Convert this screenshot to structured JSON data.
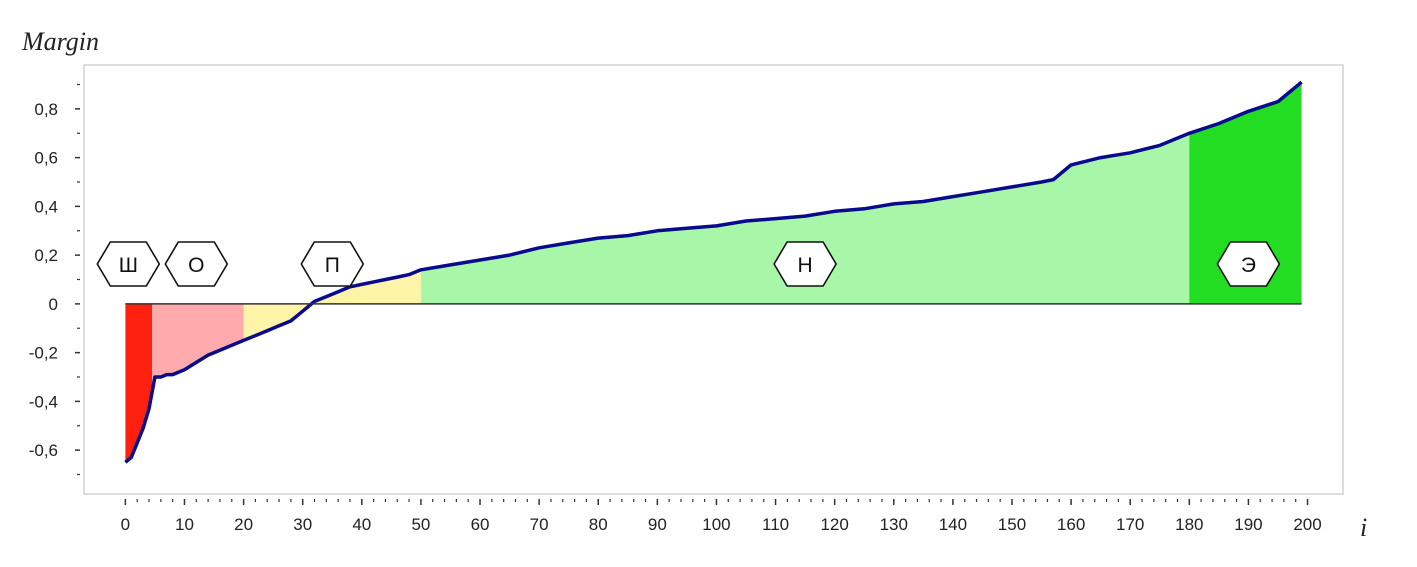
{
  "chart_data": {
    "type": "area",
    "title": "",
    "xlabel": "i",
    "ylabel": "Margin",
    "xlim": [
      -7,
      206
    ],
    "ylim": [
      -0.78,
      0.98
    ],
    "x_ticks": [
      0,
      10,
      20,
      30,
      40,
      50,
      60,
      70,
      80,
      90,
      100,
      110,
      120,
      130,
      140,
      150,
      160,
      170,
      180,
      190,
      200
    ],
    "x_tick_labels": [
      "0",
      "10",
      "20",
      "30",
      "40",
      "50",
      "60",
      "70",
      "80",
      "90",
      "100",
      "110",
      "120",
      "130",
      "140",
      "150",
      "160",
      "170",
      "180",
      "190",
      "200"
    ],
    "y_ticks": [
      -0.6,
      -0.4,
      -0.2,
      0,
      0.2,
      0.4,
      0.6,
      0.8
    ],
    "y_tick_labels": [
      "-0,6",
      "-0,4",
      "-0,2",
      "0",
      "0,2",
      "0,4",
      "0,6",
      "0,8"
    ],
    "grid": false,
    "curve_color": "#0a0a8c",
    "series": [
      {
        "x": [
          0,
          1,
          2,
          3,
          4,
          5,
          6,
          7,
          8,
          9,
          10,
          12,
          14,
          16,
          18,
          20,
          22,
          24,
          26,
          28,
          30,
          32,
          34,
          36,
          38,
          40,
          42,
          44,
          46,
          48,
          50,
          55,
          60,
          65,
          70,
          75,
          80,
          85,
          90,
          95,
          100,
          105,
          110,
          115,
          120,
          125,
          130,
          135,
          140,
          145,
          150,
          155,
          157,
          160,
          165,
          170,
          175,
          180,
          185,
          190,
          195,
          199
        ],
        "y": [
          -0.65,
          -0.63,
          -0.57,
          -0.51,
          -0.43,
          -0.3,
          -0.3,
          -0.29,
          -0.29,
          -0.28,
          -0.27,
          -0.24,
          -0.21,
          -0.19,
          -0.17,
          -0.15,
          -0.13,
          -0.11,
          -0.09,
          -0.07,
          -0.03,
          0.01,
          0.03,
          0.05,
          0.07,
          0.08,
          0.09,
          0.1,
          0.11,
          0.12,
          0.14,
          0.16,
          0.18,
          0.2,
          0.23,
          0.25,
          0.27,
          0.28,
          0.3,
          0.31,
          0.32,
          0.34,
          0.35,
          0.36,
          0.38,
          0.39,
          0.41,
          0.42,
          0.44,
          0.46,
          0.48,
          0.5,
          0.51,
          0.57,
          0.6,
          0.62,
          0.65,
          0.7,
          0.74,
          0.79,
          0.83,
          0.91
        ]
      }
    ],
    "regions": [
      {
        "label": "Ш",
        "x0": 0,
        "x1": 4.5,
        "color": "#ff2010",
        "label_x": 0.5
      },
      {
        "label": "О",
        "x0": 4.5,
        "x1": 20,
        "color": "#ffaaad",
        "label_x": 12
      },
      {
        "label": "П",
        "x0": 20,
        "x1": 50,
        "color": "#fff4a8",
        "label_x": 35
      },
      {
        "label": "Н",
        "x0": 50,
        "x1": 180,
        "color": "#a8f7a8",
        "label_x": 115
      },
      {
        "label": "Э",
        "x0": 180,
        "x1": 199,
        "color": "#22dd22",
        "label_x": 190
      }
    ]
  }
}
